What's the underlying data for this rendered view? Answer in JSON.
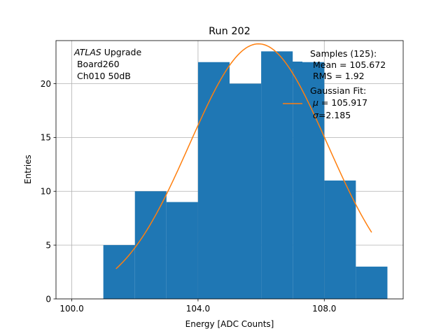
{
  "chart_data": {
    "type": "bar",
    "title": "Run 202",
    "xlabel": "Energy [ADC Counts]",
    "ylabel": "Entries",
    "xlim": [
      99.5,
      110.5
    ],
    "ylim": [
      0,
      24
    ],
    "x_ticks": [
      100.0,
      104.0,
      108.0
    ],
    "x_tick_labels": [
      "100.0",
      "104.0",
      "108.0"
    ],
    "y_ticks": [
      0,
      5,
      10,
      15,
      20
    ],
    "y_tick_labels": [
      "0",
      "5",
      "10",
      "15",
      "20"
    ],
    "grid": true,
    "histogram": {
      "name": "Samples",
      "bin_edges": [
        101,
        102,
        103,
        104,
        105,
        106,
        107,
        108,
        109,
        110
      ],
      "counts": [
        5,
        10,
        9,
        22,
        20,
        23,
        22,
        11,
        3
      ],
      "color": "#1f77b4"
    },
    "fit": {
      "name": "Gaussian Fit",
      "mu": 105.917,
      "sigma": 2.185,
      "amplitude": 23.7,
      "x_range": [
        101.4,
        109.5
      ],
      "color": "#ff7f0e"
    },
    "legend_position": "top-right",
    "legend": {
      "samples_lines": [
        "Samples (125):",
        " Mean = 105.672",
        " RMS = 1.92"
      ],
      "fit_lines": [
        "Gaussian Fit:",
        "$\\mu$ = 105.917",
        "$\\sigma$=2.185"
      ]
    },
    "annotation": {
      "atlas": "ATLAS",
      "upgrade": " Upgrade",
      "line2": " Board260",
      "line3": " Ch010 50dB"
    }
  }
}
